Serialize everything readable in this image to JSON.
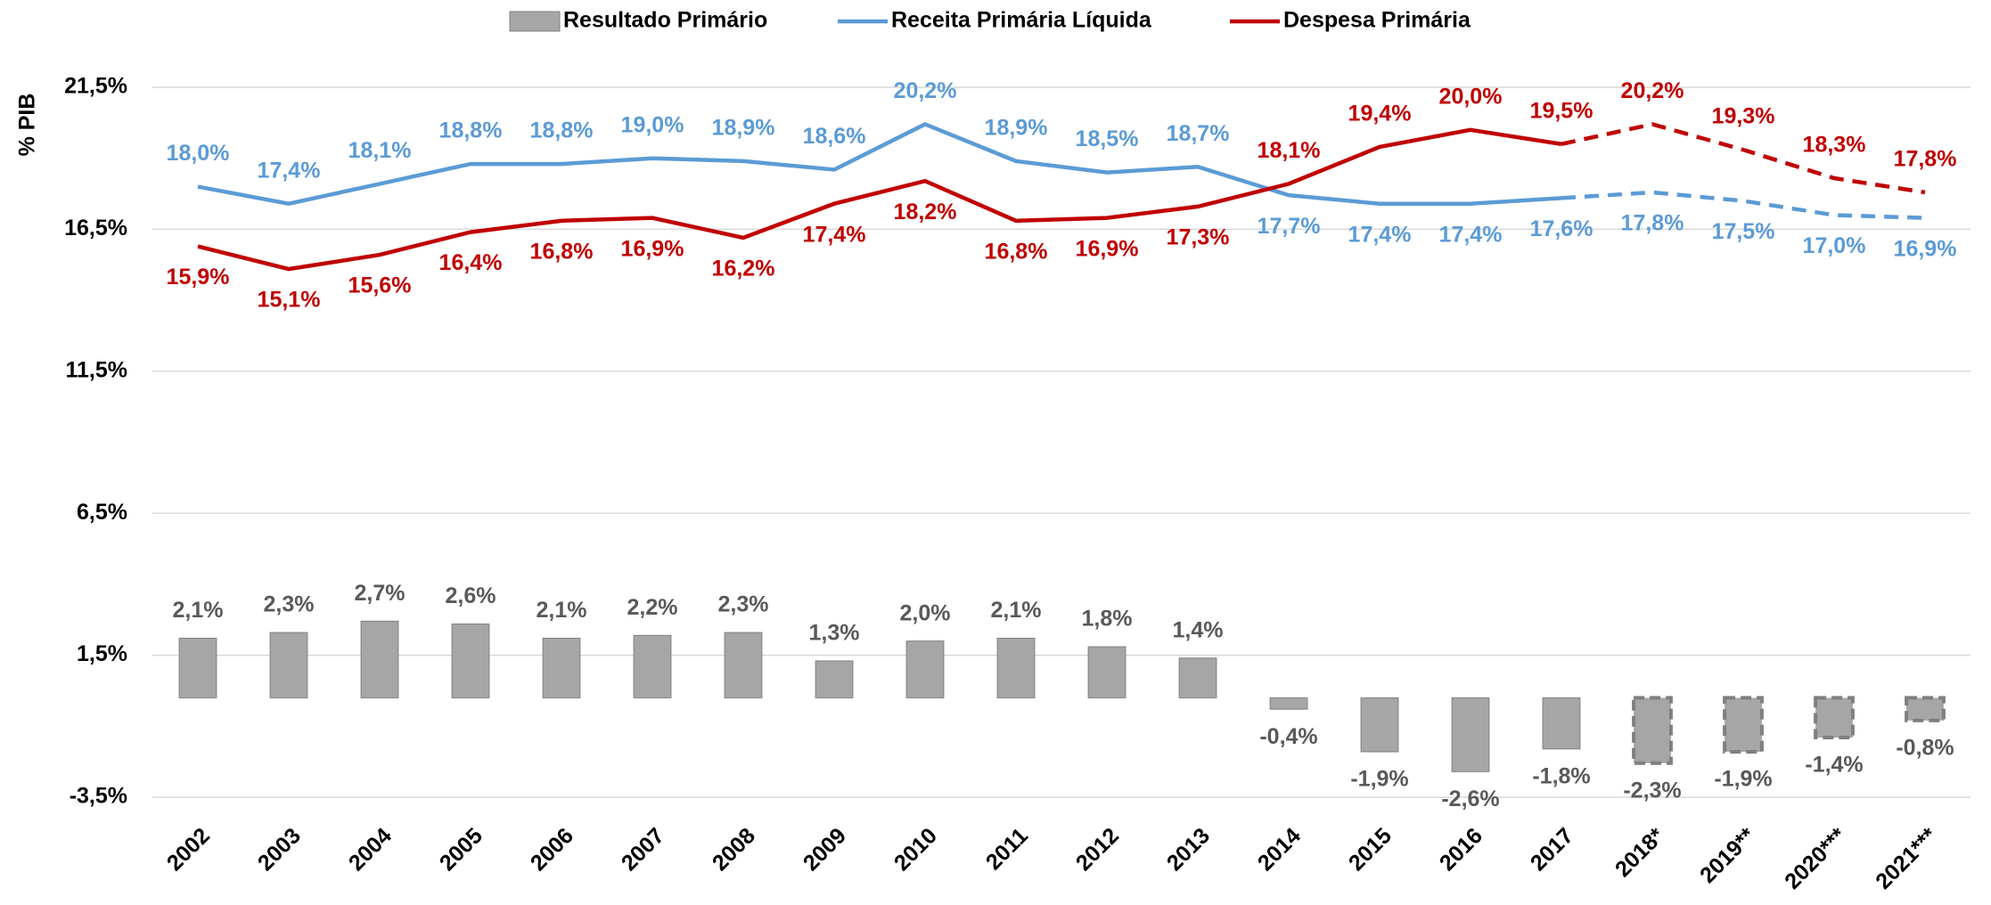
{
  "chart_data": {
    "type": "bar-line",
    "y_axis_label": "% PIB",
    "categories": [
      "2002",
      "2003",
      "2004",
      "2005",
      "2006",
      "2007",
      "2008",
      "2009",
      "2010",
      "2011",
      "2012",
      "2013",
      "2014",
      "2015",
      "2016",
      "2017",
      "2018*",
      "2019**",
      "2020***",
      "2021***"
    ],
    "series": [
      {
        "name": "Resultado Primário",
        "kind": "bar",
        "color": "#a6a6a6",
        "values": [
          2.1,
          2.3,
          2.7,
          2.6,
          2.1,
          2.2,
          2.3,
          1.3,
          2.0,
          2.1,
          1.8,
          1.4,
          -0.4,
          -1.9,
          -2.6,
          -1.8,
          -2.3,
          -1.9,
          -1.4,
          -0.8
        ],
        "value_labels": [
          "2,1%",
          "2,3%",
          "2,7%",
          "2,6%",
          "2,1%",
          "2,2%",
          "2,3%",
          "1,3%",
          "2,0%",
          "2,1%",
          "1,8%",
          "1,4%",
          "-0,4%",
          "-1,9%",
          "-2,6%",
          "-1,8%",
          "-2,3%",
          "-1,9%",
          "-1,4%",
          "-0,8%"
        ]
      },
      {
        "name": "Receita Primária Líquida",
        "kind": "line",
        "color": "#5b9bd5",
        "values": [
          18.0,
          17.4,
          18.1,
          18.8,
          18.8,
          19.0,
          18.9,
          18.6,
          20.2,
          18.9,
          18.5,
          18.7,
          17.7,
          17.4,
          17.4,
          17.6,
          17.8,
          17.5,
          17.0,
          16.9
        ],
        "value_labels": [
          "18,0%",
          "17,4%",
          "18,1%",
          "18,8%",
          "18,8%",
          "19,0%",
          "18,9%",
          "18,6%",
          "20,2%",
          "18,9%",
          "18,5%",
          "18,7%",
          "17,7%",
          "17,4%",
          "17,4%",
          "17,6%",
          "17,8%",
          "17,5%",
          "17,0%",
          "16,9%"
        ]
      },
      {
        "name": "Despesa Primária",
        "kind": "line",
        "color": "#c00000",
        "values": [
          15.9,
          15.1,
          15.6,
          16.4,
          16.8,
          16.9,
          16.2,
          17.4,
          18.2,
          16.8,
          16.9,
          17.3,
          18.1,
          19.4,
          20.0,
          19.5,
          20.2,
          19.3,
          18.3,
          17.8
        ],
        "value_labels": [
          "15,9%",
          "15,1%",
          "15,6%",
          "16,4%",
          "16,8%",
          "16,9%",
          "16,2%",
          "17,4%",
          "18,2%",
          "16,8%",
          "16,9%",
          "17,3%",
          "18,1%",
          "19,4%",
          "20,0%",
          "19,5%",
          "20,2%",
          "19,3%",
          "18,3%",
          "17,8%"
        ]
      }
    ],
    "dashed_from": 15,
    "ylim": [
      -3.5,
      21.5
    ],
    "yticks": [
      {
        "value": -3.5,
        "label": "-3,5%"
      },
      {
        "value": 1.5,
        "label": "1,5%"
      },
      {
        "value": 6.5,
        "label": "6,5%"
      },
      {
        "value": 11.5,
        "label": "11,5%"
      },
      {
        "value": 16.5,
        "label": "16,5%"
      },
      {
        "value": 21.5,
        "label": "21,5%"
      }
    ],
    "grid": true,
    "legend": "top"
  }
}
